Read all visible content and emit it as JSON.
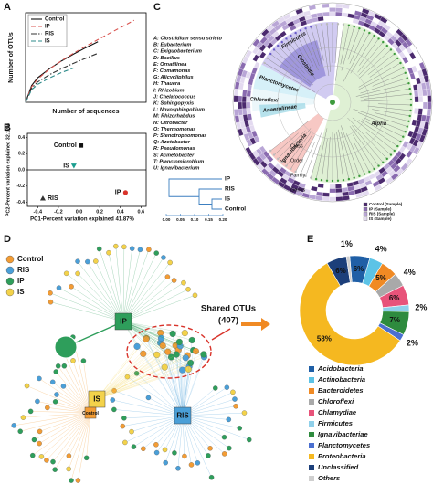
{
  "panel_labels": [
    "A",
    "B",
    "C",
    "D",
    "E"
  ],
  "chart_data": [
    {
      "type": "line",
      "x_label": "Number of sequences",
      "y_label": "Number of OTUs",
      "x": [
        0,
        5000,
        10000,
        20000,
        30000,
        40000,
        50000,
        60000,
        70000,
        80000,
        90000
      ],
      "xlim": [
        0,
        100000
      ],
      "ylim": [
        0,
        3000
      ],
      "legend": "upper left",
      "series": [
        {
          "name": "Control",
          "color": "#111111",
          "style": "solid",
          "values": [
            0,
            560,
            820,
            1130,
            1390,
            1620,
            1830,
            2030,
            null,
            null,
            null
          ]
        },
        {
          "name": "IP",
          "color": "#d9534f",
          "style": "dashed",
          "values": [
            0,
            520,
            780,
            1120,
            1400,
            1650,
            1880,
            2100,
            2320,
            2530,
            2750
          ]
        },
        {
          "name": "RIS",
          "color": "#333333",
          "style": "dashdot",
          "values": [
            0,
            470,
            680,
            930,
            1130,
            1310,
            1480,
            1640,
            null,
            null,
            null
          ]
        },
        {
          "name": "IS",
          "color": "#2e8b8b",
          "style": "dashed",
          "values": [
            0,
            420,
            600,
            820,
            1000,
            1150,
            null,
            null,
            null,
            null,
            null
          ]
        }
      ]
    },
    {
      "type": "scatter",
      "x_label": "PC1-Percent variation explained 41.87%",
      "y_label": "PC2-Percent variation explained 32.12%",
      "xlim": [
        -0.5,
        0.65
      ],
      "ylim": [
        -0.45,
        0.45
      ],
      "xticks": [
        -0.4,
        -0.2,
        {
          "value": 0,
          "label": "0.0"
        },
        0.2,
        0.4,
        0.6
      ],
      "yticks": [
        -0.4,
        -0.2,
        {
          "value": 0,
          "label": "0.0"
        },
        0.2,
        0.4
      ],
      "series": [
        {
          "name": "Control",
          "color": "#111111",
          "marker": "square",
          "x": [
            0.02
          ],
          "values": [
            0.3
          ]
        },
        {
          "name": "IS",
          "color": "#1a9e8f",
          "marker": "triangle-down",
          "x": [
            -0.05
          ],
          "values": [
            0.05
          ]
        },
        {
          "name": "RIS",
          "color": "#333333",
          "marker": "triangle",
          "x": [
            -0.35
          ],
          "values": [
            -0.35
          ]
        },
        {
          "name": "IP",
          "color": "#d9342b",
          "marker": "circle",
          "x": [
            0.45
          ],
          "values": [
            -0.28
          ]
        }
      ]
    },
    {
      "type": "pie",
      "donut": true,
      "categories": [
        "Acidobacteria",
        "Actinobacteria",
        "Bacteroidetes",
        "Chloroflexi",
        "Chlamydiae",
        "Firmicutes",
        "Ignavibacteriae",
        "Planctomycetes",
        "Proteobacteria",
        "Unclassified",
        "Others"
      ],
      "values": [
        6,
        4,
        5,
        4,
        6,
        2,
        7,
        2,
        58,
        6,
        1
      ],
      "value_labels": [
        "6%",
        "4%",
        "5%",
        "4%",
        "6%",
        "2%",
        "7%",
        "2%",
        "58%",
        "6%",
        "1%"
      ],
      "colors": [
        "#1f5fa6",
        "#5cc3e6",
        "#f08a24",
        "#a9a9a9",
        "#e8537a",
        "#8fd0ea",
        "#2e8b3e",
        "#4a6fd0",
        "#f5b820",
        "#1c3f7a",
        "#cfcfcf"
      ],
      "legend": "bottom"
    }
  ],
  "cladogram": {
    "genera": [
      "A: Clostridium sensu stricto",
      "B: Eubacterium",
      "C: Exiguobacterium",
      "D: Bacillus",
      "E: Ornatilinea",
      "F: Comamonas",
      "G: Alicycliphilus",
      "H: Thauera",
      "I: Rhizobium",
      "J: Chelatococcus",
      "K: Sphingopyxis",
      "L: Novosphingobium",
      "M: Rhizorhabdus",
      "N: Citrobacter",
      "O: Thermomonas",
      "P: Stenotrophomonas",
      "Q: Azotobacter",
      "R: Pseudomonas",
      "S: Acinetobacter",
      "T: Planctomicrobium",
      "U: Ignavibacterium"
    ],
    "clades": [
      {
        "label": "Firmicutes",
        "color": "#c2b9ec"
      },
      {
        "label": "Clostridia",
        "color": "#8f85d6"
      },
      {
        "label": "Planctomycetes",
        "color": "#c8ebf5"
      },
      {
        "label": "Chloroflexi",
        "color": "#e6f4f8"
      },
      {
        "label": "Anaerolineae",
        "color": "#9fd8e6"
      },
      {
        "label": "Ignavibacteria",
        "color": "#f4b6b0"
      },
      {
        "label": "Alpha",
        "color": "#d4ebc6"
      }
    ],
    "levels": [
      "Class",
      "Order",
      "Family",
      "Genus"
    ],
    "sample_legend": [
      {
        "label": "Control (Sample)",
        "color": "#4b2a6e"
      },
      {
        "label": "IP (Sample)",
        "color": "#8a6bb0"
      },
      {
        "label": "RIS (Sample)",
        "color": "#b9a6d6"
      },
      {
        "label": "IS (Sample)",
        "color": "#e3daf0"
      }
    ],
    "dendrogram": {
      "leaves": [
        "IP",
        "RIS",
        "IS",
        "Control"
      ],
      "scale": [
        {
          "value": 0,
          "label": "0.00"
        },
        {
          "value": 0.05,
          "label": "0.05"
        },
        {
          "value": 0.1,
          "label": "0.10"
        },
        {
          "value": 0.15,
          "label": "0.15"
        },
        {
          "value": 0.2,
          "label": "0.20"
        }
      ]
    }
  },
  "network": {
    "groups": [
      {
        "name": "Control",
        "color": "#f39c34"
      },
      {
        "name": "RIS",
        "color": "#4a9fd8"
      },
      {
        "name": "IP",
        "color": "#2e9e5b"
      },
      {
        "name": "IS",
        "color": "#f3d24a"
      }
    ],
    "shared_title": "Shared OTUs",
    "shared_count": "(407)"
  }
}
